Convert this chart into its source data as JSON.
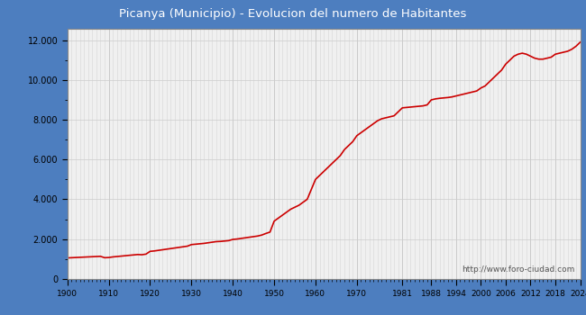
{
  "title": "Picanya (Municipio) - Evolucion del numero de Habitantes",
  "title_bg_color": "#4d7ebf",
  "title_text_color": "#ffffff",
  "plot_bg_color": "#f0f0f0",
  "outer_bg_color": "#4d7ebf",
  "line_color": "#cc0000",
  "line_width": 1.2,
  "ylim": [
    0,
    12600
  ],
  "yticks": [
    0,
    2000,
    4000,
    6000,
    8000,
    10000,
    12000
  ],
  "ytick_labels": [
    "0",
    "2.000",
    "4.000",
    "6.000",
    "8.000",
    "10.000",
    "12.000"
  ],
  "xtick_labels": [
    "1900",
    "1910",
    "1920",
    "1930",
    "1940",
    "1950",
    "1960",
    "1970",
    "1981",
    "1988",
    "1994",
    "2000",
    "2006",
    "2012",
    "2018",
    "2024"
  ],
  "watermark": "http://www.foro-ciudad.com",
  "years": [
    1900,
    1901,
    1902,
    1903,
    1904,
    1905,
    1906,
    1907,
    1908,
    1909,
    1910,
    1911,
    1912,
    1913,
    1914,
    1915,
    1916,
    1917,
    1918,
    1919,
    1920,
    1921,
    1922,
    1923,
    1924,
    1925,
    1926,
    1927,
    1928,
    1929,
    1930,
    1931,
    1932,
    1933,
    1934,
    1935,
    1936,
    1937,
    1938,
    1939,
    1940,
    1941,
    1942,
    1943,
    1944,
    1945,
    1946,
    1947,
    1948,
    1949,
    1950,
    1951,
    1952,
    1953,
    1954,
    1955,
    1956,
    1957,
    1958,
    1959,
    1960,
    1961,
    1962,
    1963,
    1964,
    1965,
    1966,
    1967,
    1968,
    1969,
    1970,
    1971,
    1972,
    1973,
    1974,
    1975,
    1976,
    1977,
    1978,
    1979,
    1981,
    1982,
    1983,
    1984,
    1985,
    1986,
    1987,
    1988,
    1989,
    1990,
    1991,
    1992,
    1993,
    1994,
    1995,
    1996,
    1997,
    1998,
    1999,
    2000,
    2001,
    2002,
    2003,
    2004,
    2005,
    2006,
    2007,
    2008,
    2009,
    2010,
    2011,
    2012,
    2013,
    2014,
    2015,
    2016,
    2017,
    2018,
    2019,
    2020,
    2021,
    2022,
    2023,
    2024
  ],
  "population": [
    1050,
    1060,
    1070,
    1080,
    1090,
    1100,
    1110,
    1120,
    1130,
    1060,
    1070,
    1100,
    1120,
    1140,
    1160,
    1180,
    1200,
    1220,
    1210,
    1240,
    1380,
    1400,
    1430,
    1460,
    1490,
    1520,
    1550,
    1580,
    1610,
    1640,
    1720,
    1740,
    1760,
    1780,
    1810,
    1840,
    1870,
    1880,
    1900,
    1920,
    1980,
    2000,
    2030,
    2060,
    2090,
    2120,
    2150,
    2200,
    2280,
    2350,
    2900,
    3050,
    3200,
    3350,
    3500,
    3600,
    3700,
    3850,
    4000,
    4500,
    5000,
    5200,
    5400,
    5600,
    5800,
    6000,
    6200,
    6500,
    6700,
    6900,
    7200,
    7350,
    7500,
    7650,
    7800,
    7950,
    8050,
    8100,
    8150,
    8200,
    8600,
    8620,
    8640,
    8660,
    8680,
    8700,
    8750,
    9000,
    9050,
    9080,
    9100,
    9120,
    9150,
    9200,
    9250,
    9300,
    9350,
    9400,
    9450,
    9600,
    9700,
    9900,
    10100,
    10300,
    10500,
    10800,
    11000,
    11200,
    11300,
    11350,
    11300,
    11200,
    11100,
    11050,
    11050,
    11100,
    11150,
    11300,
    11350,
    11400,
    11450,
    11550,
    11700,
    11900
  ]
}
